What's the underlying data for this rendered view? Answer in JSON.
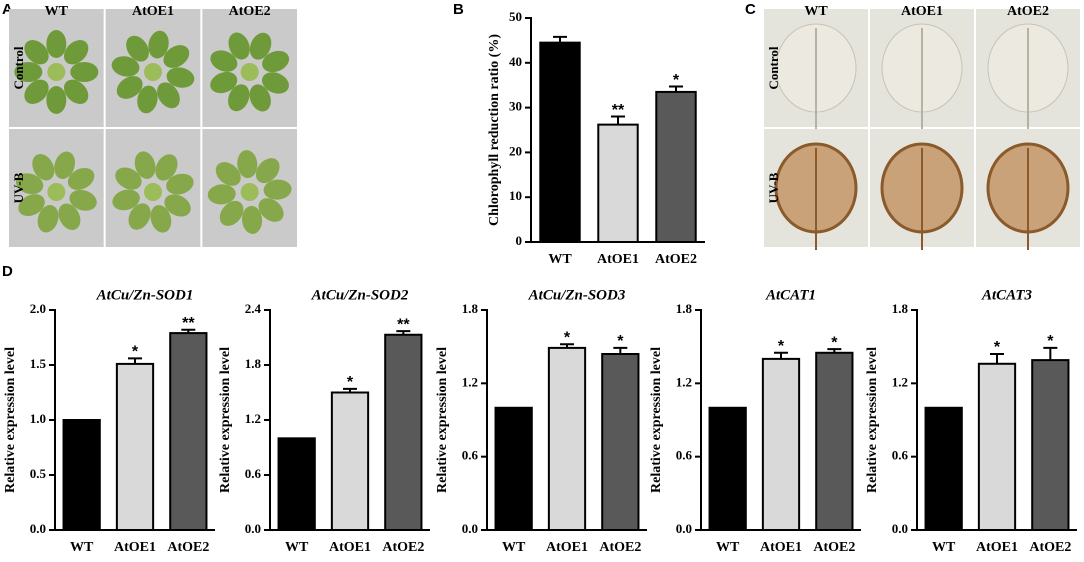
{
  "photo_panels": [
    {
      "label": "A",
      "columns": [
        "WT",
        "AtOE1",
        "AtOE2"
      ],
      "rows": [
        "Control",
        "UV-B"
      ]
    },
    {
      "label": "C",
      "columns": [
        "WT",
        "AtOE1",
        "AtOE2"
      ],
      "rows": [
        "Control",
        "UV-B"
      ]
    }
  ],
  "chart_data": [
    {
      "type": "bar",
      "panel_label": "B",
      "y_label": "Chlorophyll reduction ratio (%)",
      "categories": [
        "WT",
        "AtOE1",
        "AtOE2"
      ],
      "values": [
        44.5,
        26.2,
        33.5
      ],
      "errors": [
        1.3,
        1.8,
        1.2
      ],
      "annotations": [
        null,
        "**",
        "*"
      ],
      "colors": [
        "#000000",
        "#d9d9d9",
        "#595959"
      ],
      "ylim": [
        0,
        50
      ],
      "yticks": [
        0,
        10,
        20,
        30,
        40,
        50
      ]
    },
    {
      "type": "bar",
      "panel_label": "D",
      "title": "AtCu/Zn-SOD1",
      "y_label": "Relative expression level",
      "categories": [
        "WT",
        "AtOE1",
        "AtOE2"
      ],
      "values": [
        1.0,
        1.51,
        1.79
      ],
      "errors": [
        null,
        0.05,
        0.03
      ],
      "annotations": [
        null,
        "*",
        "**"
      ],
      "colors": [
        "#000000",
        "#d9d9d9",
        "#595959"
      ],
      "ylim": [
        0,
        2.0
      ],
      "yticks": [
        {
          "value": 0,
          "label": "0.0"
        },
        0.5,
        {
          "value": 1,
          "label": "1.0"
        },
        1.5,
        {
          "value": 2,
          "label": "2.0"
        }
      ]
    },
    {
      "type": "bar",
      "title": "AtCu/Zn-SOD2",
      "y_label": "Relative expression level",
      "categories": [
        "WT",
        "AtOE1",
        "AtOE2"
      ],
      "values": [
        1.0,
        1.5,
        2.13
      ],
      "errors": [
        null,
        0.04,
        0.04
      ],
      "annotations": [
        null,
        "*",
        "**"
      ],
      "colors": [
        "#000000",
        "#d9d9d9",
        "#595959"
      ],
      "ylim": [
        0,
        2.4
      ],
      "yticks": [
        {
          "value": 0,
          "label": "0.0"
        },
        0.6,
        1.2,
        1.8,
        2.4
      ]
    },
    {
      "type": "bar",
      "title": "AtCu/Zn-SOD3",
      "y_label": "Relative expression level",
      "categories": [
        "WT",
        "AtOE1",
        "AtOE2"
      ],
      "values": [
        1.0,
        1.49,
        1.44
      ],
      "errors": [
        null,
        0.03,
        0.05
      ],
      "annotations": [
        null,
        "*",
        "*"
      ],
      "colors": [
        "#000000",
        "#d9d9d9",
        "#595959"
      ],
      "ylim": [
        0,
        1.8
      ],
      "yticks": [
        {
          "value": 0,
          "label": "0.0"
        },
        0.6,
        1.2,
        1.8
      ]
    },
    {
      "type": "bar",
      "title": "AtCAT1",
      "y_label": "Relative expression level",
      "categories": [
        "WT",
        "AtOE1",
        "AtOE2"
      ],
      "values": [
        1.0,
        1.4,
        1.45
      ],
      "errors": [
        null,
        0.05,
        0.03
      ],
      "annotations": [
        null,
        "*",
        "*"
      ],
      "colors": [
        "#000000",
        "#d9d9d9",
        "#595959"
      ],
      "ylim": [
        0,
        1.8
      ],
      "yticks": [
        {
          "value": 0,
          "label": "0.0"
        },
        0.6,
        1.2,
        1.8
      ]
    },
    {
      "type": "bar",
      "title": "AtCAT3",
      "y_label": "Relative expression level",
      "categories": [
        "WT",
        "AtOE1",
        "AtOE2"
      ],
      "values": [
        1.0,
        1.36,
        1.39
      ],
      "errors": [
        null,
        0.08,
        0.1
      ],
      "annotations": [
        null,
        "*",
        "*"
      ],
      "colors": [
        "#000000",
        "#d9d9d9",
        "#595959"
      ],
      "ylim": [
        0,
        1.8
      ],
      "yticks": [
        {
          "value": 0,
          "label": "0.0"
        },
        0.6,
        1.2,
        1.8
      ]
    }
  ]
}
